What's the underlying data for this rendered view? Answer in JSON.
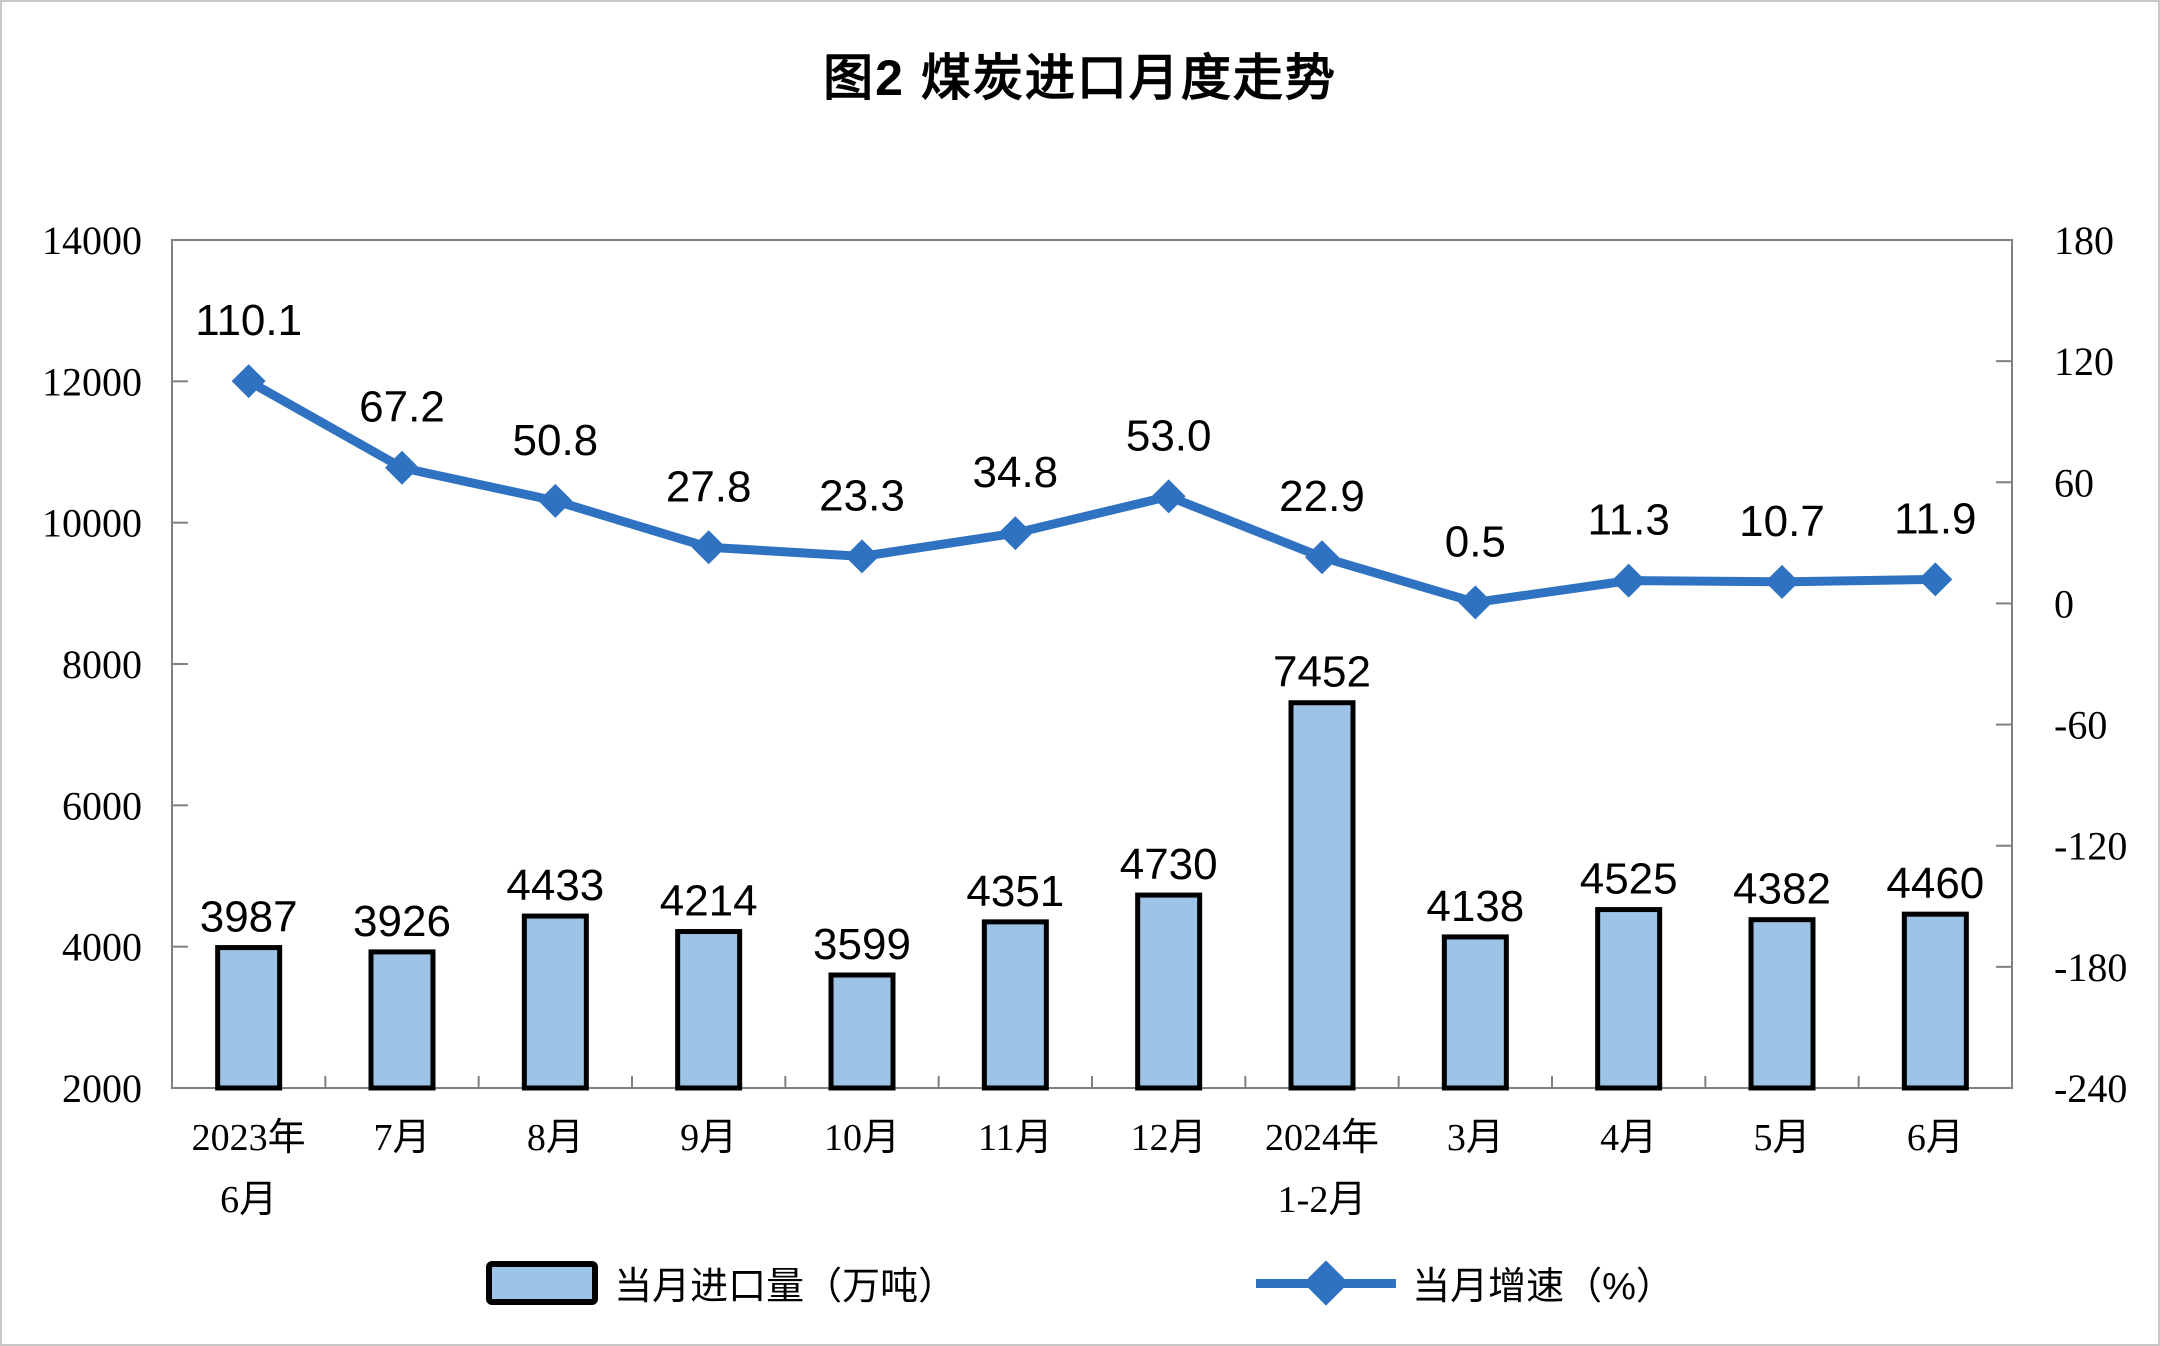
{
  "figure": {
    "title": "图2 煤炭进口月度走势"
  },
  "legend": {
    "bar_label": "当月进口量（万吨）",
    "line_label": "当月增速（%）"
  },
  "colors": {
    "bar_fill": "#9DC3E6",
    "bar_border": "#000000",
    "line": "#2F72C2",
    "frame": "#808080",
    "text": "#000000",
    "background": "#FFFFFF"
  },
  "chart_data": {
    "type": "bar",
    "title": "图2 煤炭进口月度走势",
    "categories": [
      "2023年\n6月",
      "7月",
      "8月",
      "9月",
      "10月",
      "11月",
      "12月",
      "2024年\n1-2月",
      "3月",
      "4月",
      "5月",
      "6月"
    ],
    "series": [
      {
        "name": "当月进口量（万吨）",
        "type": "bar",
        "axis": "left",
        "label_format": "0",
        "values": [
          3987,
          3926,
          4433,
          4214,
          3599,
          4351,
          4730,
          7452,
          4138,
          4525,
          4382,
          4460
        ]
      },
      {
        "name": "当月增速（%）",
        "type": "line",
        "axis": "right",
        "label_format": "0.0",
        "values": [
          110.1,
          67.2,
          50.8,
          27.8,
          23.3,
          34.8,
          53.0,
          22.9,
          0.5,
          11.3,
          10.7,
          11.9
        ]
      }
    ],
    "left_axis": {
      "min": 2000,
      "max": 14000,
      "step": 2000
    },
    "right_axis": {
      "min": -240,
      "max": 180,
      "step": 60
    },
    "grid": false,
    "legend_position": "bottom"
  }
}
